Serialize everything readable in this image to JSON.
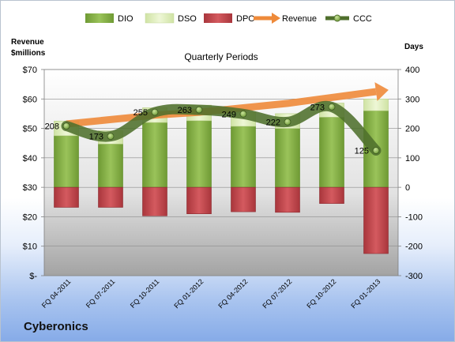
{
  "company": "Cyberonics",
  "colors": {
    "dio": "#8db64b",
    "dio_dark": "#5b8a24",
    "dso": "#e3f0be",
    "dpo": "#c0494e",
    "revenue": "#ee8a3a",
    "ccc": "#4f6f2c"
  },
  "chart_data": {
    "type": "bar",
    "title": "Quarterly Periods",
    "left_axis": {
      "label_line1": "Revenue",
      "label_line2": "$millions",
      "range": [
        0,
        70
      ],
      "ticks": [
        0,
        10,
        20,
        30,
        40,
        50,
        60,
        70
      ],
      "tick_labels": [
        "$-",
        "$10",
        "$20",
        "$30",
        "$40",
        "$50",
        "$60",
        "$70"
      ]
    },
    "right_axis": {
      "label": "Days",
      "range": [
        -300,
        400
      ],
      "ticks": [
        -300,
        -200,
        -100,
        0,
        100,
        200,
        300,
        400
      ],
      "tick_labels": [
        "-300",
        "-200",
        "-100",
        "0",
        "100",
        "200",
        "300",
        "400"
      ]
    },
    "categories": [
      "FQ 04-2011",
      "FQ 07-2011",
      "FQ 10-2011",
      "FQ 01-2012",
      "FQ 04-2012",
      "FQ 07-2012",
      "FQ 10-2012",
      "FQ 01-2013"
    ],
    "series": [
      {
        "name": "DIO",
        "axis": "days",
        "values": [
          175,
          147,
          220,
          226,
          207,
          200,
          238,
          260
        ]
      },
      {
        "name": "DSO",
        "axis": "days",
        "values": [
          50,
          45,
          50,
          53,
          48,
          50,
          48,
          40
        ]
      },
      {
        "name": "DPO",
        "axis": "days",
        "values": [
          -68,
          -68,
          -97,
          -90,
          -83,
          -85,
          -55,
          -225
        ]
      },
      {
        "name": "Revenue",
        "axis": "revenue",
        "values": [
          51.5,
          53,
          54.5,
          55.5,
          57,
          58.5,
          60.5,
          62.5
        ]
      },
      {
        "name": "CCC",
        "axis": "days",
        "values": [
          208,
          173,
          255,
          263,
          249,
          222,
          273,
          125
        ]
      }
    ],
    "data_labels": [
      "208",
      "173",
      "255",
      "263",
      "249",
      "222",
      "273",
      "125"
    ],
    "legend_position": "top"
  }
}
